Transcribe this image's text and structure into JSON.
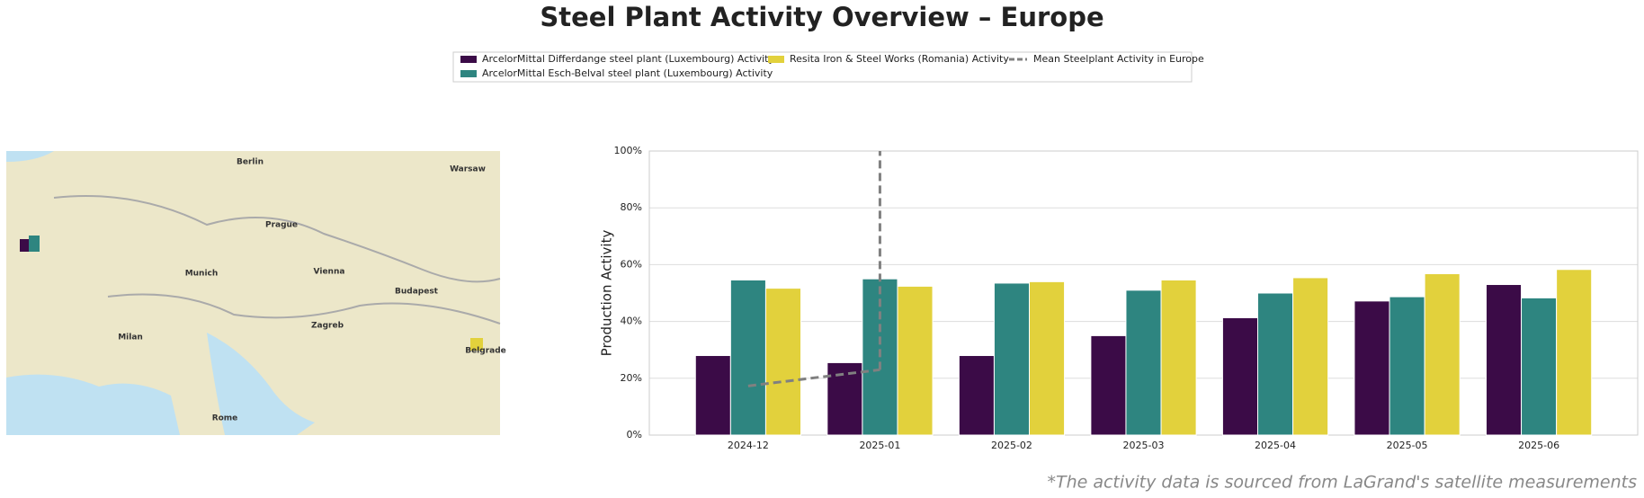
{
  "chart_data": {
    "type": "bar",
    "title": "Steel Plant Activity Overview – Europe",
    "y_label": "Production Activity",
    "footnote": "*The activity data is sourced from LaGrand's satellite measurements",
    "categories": [
      "2024-12",
      "2025-01",
      "2025-02",
      "2025-03",
      "2025-04",
      "2025-05",
      "2025-06"
    ],
    "series": [
      {
        "name": "ArcelorMittal Differdange steel plant (Luxembourg) Activity",
        "color": "#3b0b47",
        "values": [
          28,
          25.5,
          28,
          35,
          41.3,
          47.2,
          53
        ]
      },
      {
        "name": "ArcelorMittal Esch-Belval steel plant (Luxembourg) Activity",
        "color": "#2e8580",
        "values": [
          54.6,
          55,
          53.5,
          51,
          50,
          48.7,
          48.3
        ]
      },
      {
        "name": "Resita Iron & Steel Works (Romania) Activity",
        "color": "#e2d13c",
        "values": [
          51.7,
          52.4,
          54,
          54.6,
          55.4,
          56.8,
          58.3
        ]
      }
    ],
    "mean_line": {
      "name": "Mean Steelplant Activity in Europe",
      "color": "#808080",
      "values": [
        17.3,
        23,
        null,
        null,
        null,
        null,
        null
      ]
    },
    "ylim": [
      0,
      100
    ],
    "yticks": [
      {
        "value": 0,
        "label": "0%"
      },
      {
        "value": 20,
        "label": "20%"
      },
      {
        "value": 40,
        "label": "40%"
      },
      {
        "value": 60,
        "label": "60%"
      },
      {
        "value": 80,
        "label": "80%"
      },
      {
        "value": 100,
        "label": "100%"
      }
    ],
    "grid": true,
    "map_labels": [
      "Berlin",
      "Warsaw",
      "Prague",
      "Munich",
      "Vienna",
      "Budapest",
      "Zagreb",
      "Belgrade",
      "Rome",
      "Milan"
    ]
  }
}
